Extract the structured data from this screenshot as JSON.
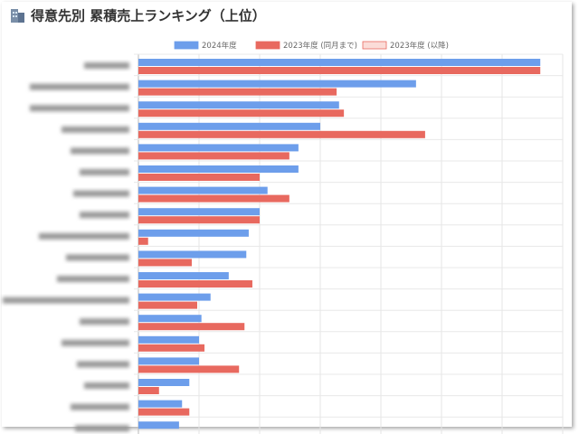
{
  "chart_data": {
    "type": "hbar",
    "title": "得意先別 累積売上ランキング（上位）",
    "categories": [
      null,
      null,
      null,
      null,
      null,
      null,
      null,
      null,
      null,
      null,
      null,
      null,
      null,
      null,
      null,
      null,
      null,
      null
    ],
    "series": [
      {
        "name": "2024年度",
        "color": "#6d9eeb",
        "values": [
          6.63,
          4.58,
          3.31,
          3.0,
          2.64,
          2.64,
          2.13,
          2.0,
          1.82,
          1.78,
          1.49,
          1.19,
          1.04,
          1.0,
          1.0,
          0.84,
          0.72,
          0.67
        ]
      },
      {
        "name": "2023年度 (同月まで)",
        "color": "#e8695f",
        "values": [
          6.63,
          3.27,
          3.39,
          4.73,
          2.49,
          2.0,
          2.49,
          2.0,
          0.16,
          0.88,
          1.88,
          0.97,
          1.75,
          1.09,
          1.66,
          0.34,
          0.84,
          null
        ]
      },
      {
        "name": "2023年度 (以降)",
        "color": "#fbdcd8",
        "values": [
          null,
          null,
          null,
          null,
          null,
          null,
          null,
          null,
          null,
          null,
          null,
          null,
          null,
          null,
          null,
          null,
          null,
          null
        ]
      }
    ],
    "xlim": [
      0,
      7
    ],
    "xticks": [
      0,
      1,
      2,
      3,
      4,
      5,
      6,
      7
    ],
    "grid": true
  }
}
